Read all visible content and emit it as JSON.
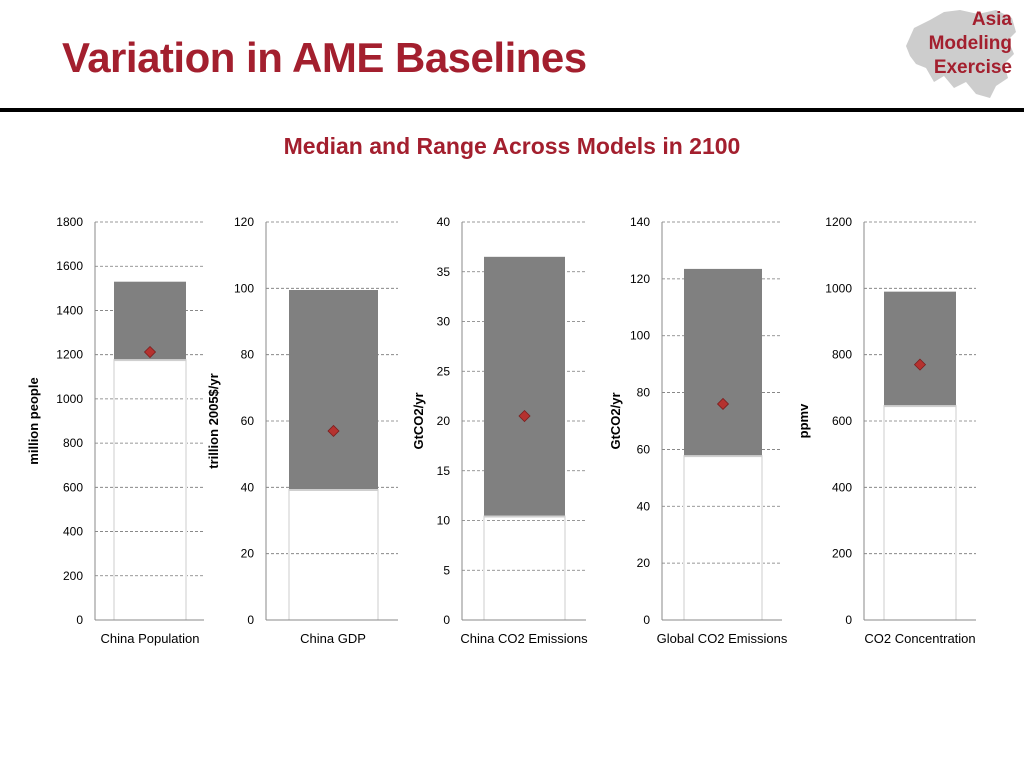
{
  "header": {
    "title": "Variation in AME Baselines",
    "subtitle": "Median and Range Across Models in 2100"
  },
  "logo": {
    "lines": [
      "Asia",
      "Modeling",
      "Exercise"
    ]
  },
  "colors": {
    "accent": "#a31f2e",
    "range_bar": "#808080",
    "median_marker": "#b5322f",
    "gridline": "#777777"
  },
  "chart_data": [
    {
      "type": "bar",
      "category": "China Population",
      "ylabel": "million people",
      "ylim": [
        0,
        1800
      ],
      "yticks": [
        0,
        200,
        400,
        600,
        800,
        1000,
        1200,
        1400,
        1600,
        1800
      ],
      "range_min": 1180,
      "range_max": 1530,
      "median": 1212,
      "grid": true
    },
    {
      "type": "bar",
      "category": "China GDP",
      "ylabel": "trillion 2005$/yr",
      "ylim": [
        0,
        120
      ],
      "yticks": [
        0,
        20,
        40,
        60,
        80,
        100,
        120
      ],
      "range_min": 39.5,
      "range_max": 99.5,
      "median": 57,
      "grid": true
    },
    {
      "type": "bar",
      "category": "China CO2 Emissions",
      "ylabel": "GtCO2/yr",
      "ylim": [
        0,
        40
      ],
      "yticks": [
        0,
        5,
        10,
        15,
        20,
        25,
        30,
        35,
        40
      ],
      "range_min": 10.5,
      "range_max": 36.5,
      "median": 20.5,
      "grid": true
    },
    {
      "type": "bar",
      "category": "Global CO2 Emissions",
      "ylabel": "GtCO2/yr",
      "ylim": [
        0,
        140
      ],
      "yticks": [
        0,
        20,
        40,
        60,
        80,
        100,
        120,
        140
      ],
      "range_min": 58,
      "range_max": 123.5,
      "median": 76,
      "grid": true
    },
    {
      "type": "bar",
      "category": "CO2 Concentration",
      "ylabel": "ppmv",
      "ylim": [
        0,
        1200
      ],
      "yticks": [
        0,
        200,
        400,
        600,
        800,
        1000,
        1200
      ],
      "range_min": 648,
      "range_max": 990,
      "median": 770,
      "grid": true
    }
  ]
}
